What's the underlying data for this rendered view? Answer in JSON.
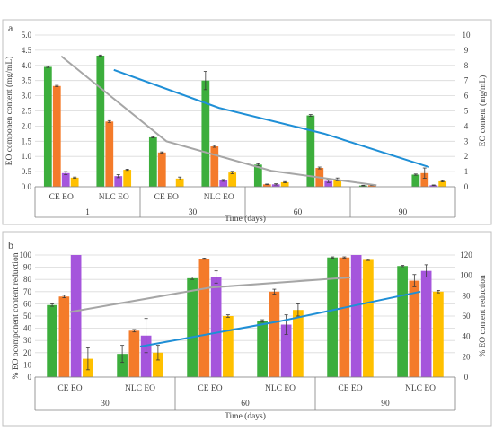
{
  "colors": {
    "green": "#3cae3c",
    "orange": "#f47b2a",
    "purple": "#a555dc",
    "yellow": "#ffc000",
    "gray_line": "#a6a6a6",
    "blue_line": "#1f8fd6"
  },
  "chart_data": [
    {
      "type": "bar",
      "panel_letter": "a",
      "xlabel": "Time (days)",
      "ylabel": "EO componen  content (mg/mL)",
      "y2label": "EO content (mg/mL)",
      "ylim": [
        0,
        5
      ],
      "y2lim": [
        0,
        10
      ],
      "yticks": [
        "0.0",
        "0.5",
        "1.0",
        "1.5",
        "2.0",
        "2.5",
        "3.0",
        "3.5",
        "4.0",
        "4.5",
        "5.0"
      ],
      "y2ticks": [
        "0",
        "1",
        "2",
        "3",
        "4",
        "5",
        "6",
        "7",
        "8",
        "9",
        "10"
      ],
      "time_groups": [
        "1",
        "30",
        "60",
        "90"
      ],
      "sub_labels": [
        "CE EO",
        "NLC EO",
        "CE EO",
        "NLC EO"
      ],
      "grid": true,
      "bars": [
        {
          "values": [
            3.95,
            3.32,
            0.45,
            0.3
          ],
          "errors": [
            0.02,
            0.02,
            0.05,
            0.02
          ]
        },
        {
          "values": [
            4.32,
            2.15,
            0.35,
            0.56
          ],
          "errors": [
            0.02,
            0.03,
            0.05,
            0.02
          ]
        },
        {
          "values": [
            1.63,
            1.13,
            0.0,
            0.27
          ],
          "errors": [
            0.02,
            0.02,
            0.0,
            0.05
          ]
        },
        {
          "values": [
            3.5,
            1.33,
            0.21,
            0.47
          ],
          "errors": [
            0.3,
            0.03,
            0.03,
            0.04
          ]
        },
        {
          "values": [
            0.73,
            0.08,
            0.08,
            0.15
          ],
          "errors": [
            0.03,
            0.01,
            0.02,
            0.02
          ]
        },
        {
          "values": [
            2.35,
            0.62,
            0.19,
            0.24
          ],
          "errors": [
            0.03,
            0.03,
            0.05,
            0.05
          ]
        },
        {
          "values": [
            0.04,
            0.05,
            0.0,
            0.0
          ],
          "errors": [
            0.01,
            0.01,
            0.0,
            0.0
          ]
        },
        {
          "values": [
            0.4,
            0.45,
            0.05,
            0.18
          ],
          "errors": [
            0.02,
            0.17,
            0.01,
            0.02
          ]
        }
      ],
      "lines": [
        {
          "color_key": "gray_line",
          "points": [
            [
              0,
              8.6
            ],
            [
              2,
              3.0
            ],
            [
              4,
              1.05
            ],
            [
              6,
              0.1
            ]
          ]
        },
        {
          "color_key": "blue_line",
          "points": [
            [
              1,
              7.7
            ],
            [
              3,
              5.2
            ],
            [
              5,
              3.5
            ],
            [
              7,
              1.3
            ]
          ]
        }
      ]
    },
    {
      "type": "bar",
      "panel_letter": "b",
      "xlabel": "Time (days)",
      "ylabel": "% EO ocomponent  content reduction",
      "y2label": "% EO content reduction",
      "ylim": [
        0,
        100
      ],
      "y2lim": [
        0,
        120
      ],
      "yticks": [
        "0",
        "10",
        "20",
        "30",
        "40",
        "50",
        "60",
        "70",
        "80",
        "90",
        "100"
      ],
      "y2ticks": [
        "0",
        "20",
        "40",
        "60",
        "80",
        "100",
        "120"
      ],
      "time_groups": [
        "30",
        "60",
        "90"
      ],
      "sub_labels": [
        "CE EO",
        "NLC EO",
        "CE EO",
        "NLC EO",
        "CE EO",
        "NLC EO"
      ],
      "grid": true,
      "bars": [
        {
          "values": [
            59,
            66,
            100,
            15
          ],
          "errors": [
            1,
            1,
            0,
            9
          ]
        },
        {
          "values": [
            19,
            38,
            34,
            20
          ],
          "errors": [
            7,
            1,
            14,
            6
          ]
        },
        {
          "values": [
            81,
            97,
            82,
            50
          ],
          "errors": [
            1,
            0.5,
            5,
            1
          ]
        },
        {
          "values": [
            46,
            70,
            43,
            55
          ],
          "errors": [
            1,
            2,
            8,
            5
          ]
        },
        {
          "values": [
            98,
            98,
            100,
            96
          ],
          "errors": [
            0.5,
            0.5,
            0,
            0.5
          ]
        },
        {
          "values": [
            91,
            79,
            87,
            70
          ],
          "errors": [
            0.5,
            5,
            5,
            1
          ]
        }
      ],
      "lines": [
        {
          "color_key": "gray_line",
          "points": [
            [
              0,
              64
            ],
            [
              2,
              88
            ],
            [
              4,
              98
            ]
          ]
        },
        {
          "color_key": "blue_line",
          "points": [
            [
              1,
              30
            ],
            [
              3,
              55
            ],
            [
              5,
              84
            ]
          ]
        }
      ]
    }
  ]
}
